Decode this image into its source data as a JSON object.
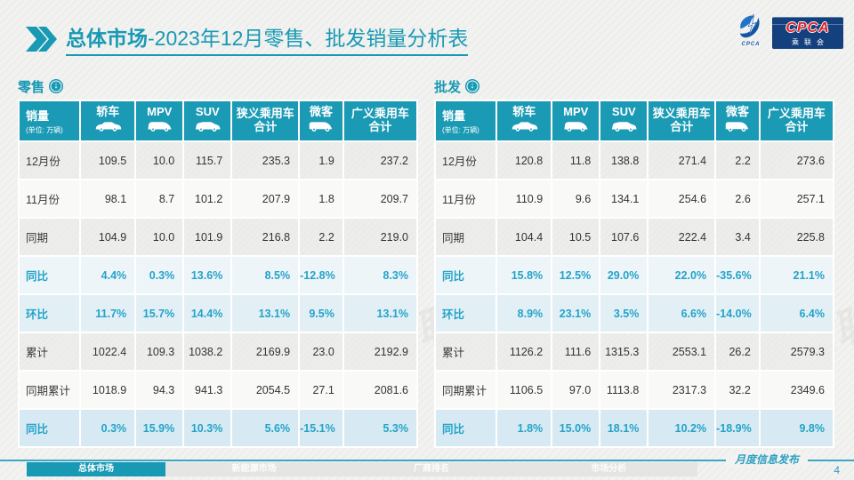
{
  "page": {
    "title_bold": "总体市场",
    "title_rest": "-2023年12月零售、批发销量分析表",
    "release_note": "月度信息发布",
    "page_number": "4",
    "watermark": "CPCA 乘联会"
  },
  "logo": {
    "swoosh_caption": "CPCA",
    "box_main": "CPCA",
    "box_sub": "乘联会"
  },
  "tables": [
    {
      "name": "零售",
      "unit_label": "销量",
      "unit_sub": "(单位: 万辆)",
      "columns": [
        {
          "label": "轿车",
          "icon": "sedan-icon"
        },
        {
          "label": "MPV",
          "icon": "mpv-icon"
        },
        {
          "label": "SUV",
          "icon": "suv-icon"
        },
        {
          "label": "狭义乘用车\n合计",
          "icon": null
        },
        {
          "label": "微客",
          "icon": "microvan-icon"
        },
        {
          "label": "广义乘用车\n合计",
          "icon": null
        }
      ],
      "rows": [
        {
          "label": "12月份",
          "style": "gray",
          "values": [
            "109.5",
            "10.0",
            "115.7",
            "235.3",
            "1.9",
            "237.2"
          ]
        },
        {
          "label": "11月份",
          "style": "white",
          "values": [
            "98.1",
            "8.7",
            "101.2",
            "207.9",
            "1.8",
            "209.7"
          ]
        },
        {
          "label": "同期",
          "style": "gray",
          "values": [
            "104.9",
            "10.0",
            "101.9",
            "216.8",
            "2.2",
            "219.0"
          ]
        },
        {
          "label": "同比",
          "style": "pct-light",
          "values": [
            "4.4%",
            "0.3%",
            "13.6%",
            "8.5%",
            "-12.8%",
            "8.3%"
          ]
        },
        {
          "label": "环比",
          "style": "pct-mid",
          "values": [
            "11.7%",
            "15.7%",
            "14.4%",
            "13.1%",
            "9.5%",
            "13.1%"
          ]
        },
        {
          "label": "累计",
          "style": "gray",
          "values": [
            "1022.4",
            "109.3",
            "1038.2",
            "2169.9",
            "23.0",
            "2192.9"
          ]
        },
        {
          "label": "同期累计",
          "style": "white",
          "values": [
            "1018.9",
            "94.3",
            "941.3",
            "2054.5",
            "27.1",
            "2081.6"
          ]
        },
        {
          "label": "同比",
          "style": "pct-strong",
          "values": [
            "0.3%",
            "15.9%",
            "10.3%",
            "5.6%",
            "-15.1%",
            "5.3%"
          ]
        }
      ]
    },
    {
      "name": "批发",
      "unit_label": "销量",
      "unit_sub": "(单位: 万辆)",
      "columns": [
        {
          "label": "轿车",
          "icon": "sedan-icon"
        },
        {
          "label": "MPV",
          "icon": "mpv-icon"
        },
        {
          "label": "SUV",
          "icon": "suv-icon"
        },
        {
          "label": "狭义乘用车\n合计",
          "icon": null
        },
        {
          "label": "微客",
          "icon": "microvan-icon"
        },
        {
          "label": "广义乘用车\n合计",
          "icon": null
        }
      ],
      "rows": [
        {
          "label": "12月份",
          "style": "gray",
          "values": [
            "120.8",
            "11.8",
            "138.8",
            "271.4",
            "2.2",
            "273.6"
          ]
        },
        {
          "label": "11月份",
          "style": "white",
          "values": [
            "110.9",
            "9.6",
            "134.1",
            "254.6",
            "2.6",
            "257.1"
          ]
        },
        {
          "label": "同期",
          "style": "gray",
          "values": [
            "104.4",
            "10.5",
            "107.6",
            "222.4",
            "3.4",
            "225.8"
          ]
        },
        {
          "label": "同比",
          "style": "pct-light",
          "values": [
            "15.8%",
            "12.5%",
            "29.0%",
            "22.0%",
            "-35.6%",
            "21.1%"
          ]
        },
        {
          "label": "环比",
          "style": "pct-mid",
          "values": [
            "8.9%",
            "23.1%",
            "3.5%",
            "6.6%",
            "-14.0%",
            "6.4%"
          ]
        },
        {
          "label": "累计",
          "style": "gray",
          "values": [
            "1126.2",
            "111.6",
            "1315.3",
            "2553.1",
            "26.2",
            "2579.3"
          ]
        },
        {
          "label": "同期累计",
          "style": "white",
          "values": [
            "1106.5",
            "97.0",
            "1113.8",
            "2317.3",
            "32.2",
            "2349.6"
          ]
        },
        {
          "label": "同比",
          "style": "pct-strong",
          "values": [
            "1.8%",
            "15.0%",
            "18.1%",
            "10.2%",
            "-18.9%",
            "9.8%"
          ]
        }
      ]
    }
  ],
  "footer": {
    "tabs": [
      {
        "label": "总体市场",
        "active": true
      },
      {
        "label": "新能源市场",
        "active": false
      },
      {
        "label": "厂商排名",
        "active": false
      },
      {
        "label": "市场分析",
        "active": false
      }
    ]
  }
}
